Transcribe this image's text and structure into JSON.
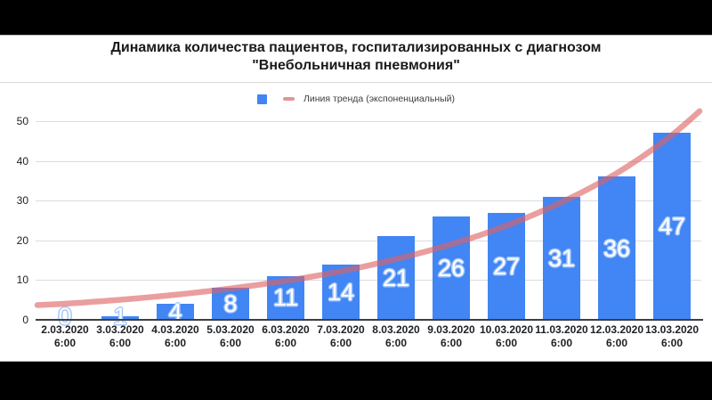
{
  "header": {
    "title_line1": "Динамика количества пациентов, госпитализированных с диагнозом",
    "title_line2": "\"Внебольничная пневмония\""
  },
  "legend": {
    "bars_swatch_color": "#4285f4",
    "trend_swatch_color": "#e39493",
    "trend_label": "Линия тренда (экспоненциальный)"
  },
  "chart_data": {
    "type": "bar",
    "title": "Динамика количества пациентов, госпитализированных с диагнозом \"Внебольничная пневмония\"",
    "categories": [
      "2.03.2020",
      "3.03.2020",
      "4.03.2020",
      "5.03.2020",
      "6.03.2020",
      "7.03.2020",
      "8.03.2020",
      "9.03.2020",
      "10.03.2020",
      "11.03.2020",
      "12.03.2020",
      "13.03.2020"
    ],
    "category_sub_label": "6:00",
    "values": [
      0,
      1,
      4,
      8,
      11,
      14,
      21,
      26,
      27,
      31,
      36,
      47
    ],
    "y_ticks": [
      0,
      10,
      20,
      30,
      40,
      50
    ],
    "ylim": [
      0,
      50
    ],
    "grid": true,
    "legend_position": "top",
    "bar_color": "#4285f4",
    "label_color": "#ffffff",
    "label_outline_color": "#a5c8fa",
    "grid_color": "#dadce0",
    "axis_color": "#3c4043",
    "trend": {
      "name": "Линия тренда (экспоненциальный)",
      "model": "exponential",
      "color": "rgba(221,99,99,0.62)",
      "samples": [
        [
          -0.5,
          3.7
        ],
        [
          0,
          4.05
        ],
        [
          1,
          5.05
        ],
        [
          2,
          6.3
        ],
        [
          3,
          7.9
        ],
        [
          4,
          9.8
        ],
        [
          5,
          12.2
        ],
        [
          6,
          15.3
        ],
        [
          7,
          19.0
        ],
        [
          8,
          23.7
        ],
        [
          9,
          29.6
        ],
        [
          10,
          36.9
        ],
        [
          11,
          46.5
        ],
        [
          11.5,
          52.5
        ]
      ]
    }
  }
}
